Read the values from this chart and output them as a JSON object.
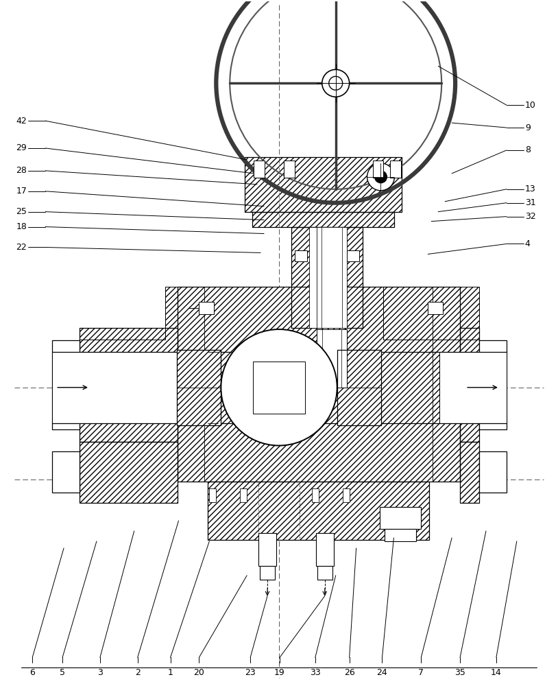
{
  "bg_color": "#ffffff",
  "line_color": "#000000",
  "fig_width": 8.14,
  "fig_height": 10.0,
  "dpi": 100
}
